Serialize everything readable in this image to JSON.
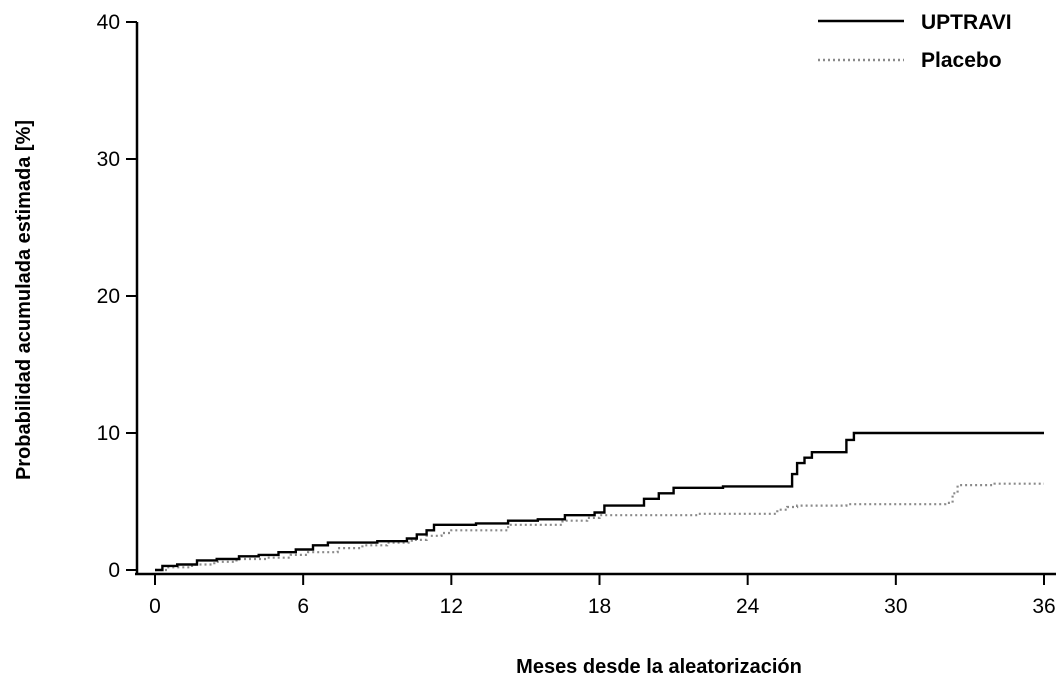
{
  "chart_data": {
    "type": "line",
    "title": "",
    "xlabel": "Meses desde la aleatorización",
    "ylabel": "Probabilidad acumulada estimada [%]",
    "xlim": [
      0,
      36
    ],
    "ylim": [
      0,
      40
    ],
    "x_ticks": [
      "0",
      "6",
      "12",
      "18",
      "24",
      "30",
      "36"
    ],
    "y_ticks": [
      "0",
      "10",
      "20",
      "30",
      "40"
    ],
    "grid": false,
    "legend_position": "top-right",
    "series": [
      {
        "name": "UPTRAVI",
        "style": "solid",
        "color": "#000000",
        "x": [
          0,
          0.3,
          0.9,
          1.7,
          2.5,
          3.4,
          4.2,
          5.0,
          5.7,
          6.4,
          7.0,
          9.0,
          10.2,
          10.6,
          11.0,
          11.3,
          13.0,
          14.3,
          15.5,
          16.6,
          17.8,
          18.2,
          19.8,
          20.4,
          21.0,
          23.0,
          25.8,
          26.0,
          26.3,
          26.6,
          28.0,
          28.3,
          30.0,
          36.0
        ],
        "y": [
          0,
          0.3,
          0.4,
          0.7,
          0.8,
          1.0,
          1.1,
          1.3,
          1.5,
          1.8,
          2.0,
          2.1,
          2.3,
          2.6,
          2.9,
          3.3,
          3.4,
          3.6,
          3.7,
          4.0,
          4.2,
          4.7,
          5.2,
          5.6,
          6.0,
          6.1,
          7.0,
          7.8,
          8.2,
          8.6,
          9.5,
          10.0,
          10.0,
          10.0
        ]
      },
      {
        "name": "Placebo",
        "style": "dotted",
        "color": "#8a8a8a",
        "x": [
          0,
          0.5,
          1.5,
          2.4,
          3.3,
          4.5,
          5.5,
          6.2,
          7.4,
          8.4,
          9.4,
          10.4,
          11.0,
          11.6,
          12.0,
          14.3,
          16.5,
          17.5,
          18.0,
          22.0,
          25.2,
          25.6,
          26.0,
          28.0,
          32.0,
          32.3,
          32.5,
          34.0,
          36.0
        ],
        "y": [
          0,
          0.2,
          0.4,
          0.6,
          0.8,
          0.9,
          1.1,
          1.3,
          1.6,
          1.8,
          2.0,
          2.2,
          2.5,
          2.7,
          2.9,
          3.3,
          3.6,
          3.8,
          4.0,
          4.1,
          4.4,
          4.6,
          4.7,
          4.8,
          4.9,
          5.6,
          6.2,
          6.3,
          6.3
        ]
      }
    ]
  }
}
